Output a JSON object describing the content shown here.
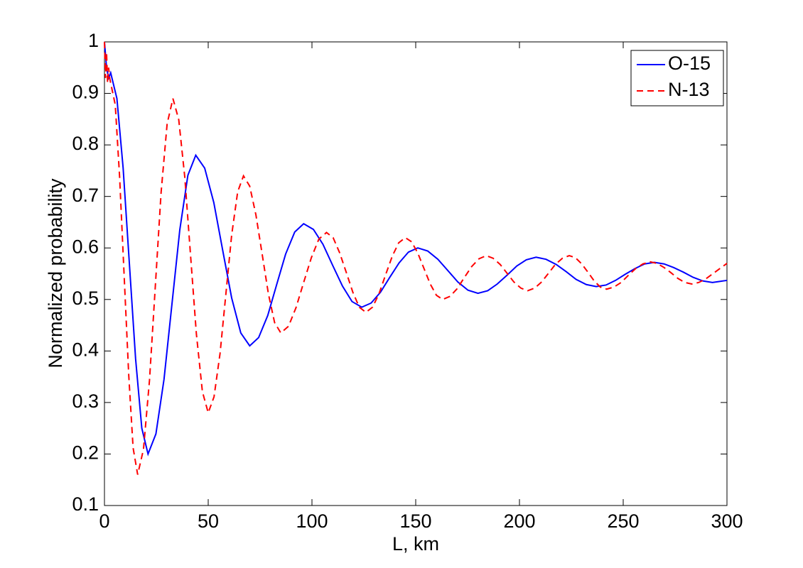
{
  "chart_data": {
    "type": "line",
    "xlabel": "L, km",
    "ylabel": "Normalized probability",
    "xlim": [
      0,
      300
    ],
    "xticks": [
      0,
      50,
      100,
      150,
      200,
      250,
      300
    ],
    "ylim": [
      0.1,
      1
    ],
    "yticks": [
      0.1,
      0.2,
      0.3,
      0.4,
      0.5,
      0.6,
      0.7,
      0.8,
      0.9,
      1
    ],
    "legend": "upper right",
    "series": [
      {
        "name": "O-15",
        "color": "#0000ff",
        "linestyle": "solid",
        "x": [
          0,
          1,
          2,
          3,
          6,
          9,
          12,
          15,
          18,
          21,
          24.8,
          28.7,
          32.5,
          36.3,
          40.2,
          44,
          48.3,
          52.7,
          57,
          61.3,
          65.7,
          70,
          74.3,
          78.7,
          83,
          87.3,
          91.7,
          96,
          100.7,
          105.3,
          110,
          114.7,
          119.3,
          124,
          128.5,
          133,
          137.5,
          142,
          146.5,
          151,
          155.8,
          160.7,
          165.5,
          170.3,
          175.2,
          180,
          184.7,
          189.3,
          194,
          198.7,
          203.3,
          208,
          212.8,
          217.7,
          222.5,
          227.3,
          232.2,
          237,
          241.7,
          246.3,
          251,
          255.7,
          260.3,
          265,
          269.7,
          274.3,
          279,
          283.7,
          288.3,
          293,
          296.5,
          300
        ],
        "values": [
          1,
          0.95,
          0.93,
          0.94,
          0.89,
          0.755,
          0.57,
          0.385,
          0.25,
          0.2,
          0.239,
          0.345,
          0.49,
          0.635,
          0.741,
          0.78,
          0.755,
          0.688,
          0.595,
          0.503,
          0.435,
          0.41,
          0.426,
          0.469,
          0.529,
          0.588,
          0.631,
          0.647,
          0.636,
          0.607,
          0.566,
          0.526,
          0.496,
          0.485,
          0.493,
          0.514,
          0.543,
          0.571,
          0.592,
          0.6,
          0.594,
          0.578,
          0.556,
          0.534,
          0.518,
          0.512,
          0.517,
          0.53,
          0.547,
          0.565,
          0.577,
          0.582,
          0.578,
          0.568,
          0.554,
          0.539,
          0.529,
          0.525,
          0.528,
          0.537,
          0.549,
          0.56,
          0.569,
          0.572,
          0.569,
          0.562,
          0.553,
          0.543,
          0.536,
          0.533,
          0.535,
          0.537
        ]
      },
      {
        "name": "N-13",
        "color": "#ff0000",
        "linestyle": "dashed",
        "x": [
          0,
          0.5,
          1,
          1.5,
          2,
          2.5,
          3,
          5.2,
          7.3,
          9.5,
          11.7,
          13.8,
          16,
          18.8,
          21.7,
          24.5,
          27.3,
          30.2,
          33,
          35.8,
          38.7,
          41.5,
          44.3,
          47.2,
          50,
          52.8,
          55.7,
          58.5,
          61.3,
          64.2,
          67,
          70,
          73,
          76,
          79,
          82,
          85,
          88.7,
          92.3,
          96,
          99.7,
          103.3,
          107,
          110.2,
          113.3,
          116.5,
          119.7,
          122.8,
          126,
          129.2,
          132.3,
          135.5,
          138.7,
          141.8,
          145,
          148,
          151,
          154,
          157,
          160,
          163,
          166.5,
          170,
          173.5,
          177,
          180.5,
          184,
          187.3,
          190.7,
          194,
          197.3,
          200.7,
          204,
          207.3,
          210.7,
          214,
          217.3,
          220.7,
          224,
          227,
          230,
          233,
          236,
          239,
          242,
          245.5,
          249,
          252.5,
          256,
          259.5,
          263,
          266.3,
          269.7,
          273,
          276.3,
          279.7,
          283,
          286.4,
          289.8,
          293.2,
          296.6,
          300
        ],
        "values": [
          1,
          0.93,
          0.98,
          0.92,
          0.95,
          0.93,
          0.92,
          0.878,
          0.738,
          0.545,
          0.353,
          0.212,
          0.16,
          0.209,
          0.343,
          0.525,
          0.708,
          0.841,
          0.89,
          0.849,
          0.738,
          0.585,
          0.433,
          0.321,
          0.28,
          0.311,
          0.395,
          0.51,
          0.625,
          0.709,
          0.74,
          0.72,
          0.664,
          0.588,
          0.511,
          0.455,
          0.435,
          0.448,
          0.484,
          0.533,
          0.581,
          0.617,
          0.63,
          0.62,
          0.591,
          0.553,
          0.514,
          0.485,
          0.475,
          0.485,
          0.511,
          0.548,
          0.584,
          0.61,
          0.62,
          0.612,
          0.59,
          0.56,
          0.53,
          0.508,
          0.5,
          0.506,
          0.521,
          0.543,
          0.564,
          0.579,
          0.585,
          0.58,
          0.568,
          0.551,
          0.534,
          0.522,
          0.517,
          0.522,
          0.534,
          0.551,
          0.568,
          0.58,
          0.585,
          0.581,
          0.569,
          0.553,
          0.536,
          0.524,
          0.52,
          0.524,
          0.533,
          0.547,
          0.56,
          0.569,
          0.573,
          0.57,
          0.562,
          0.552,
          0.541,
          0.533,
          0.53,
          0.533,
          0.54,
          0.55,
          0.56,
          0.57
        ]
      }
    ]
  }
}
